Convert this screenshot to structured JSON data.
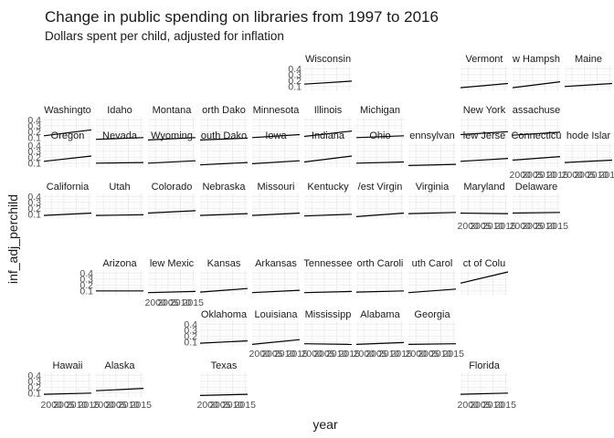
{
  "chart_data": {
    "type": "line",
    "layout": "facet-geo",
    "title": "Change in public spending on libraries from 1997 to 2016",
    "subtitle": "Dollars spent per child, adjusted for inflation",
    "xlabel": "year",
    "ylabel": "inf_adj_perchild",
    "x_ticks": [
      2000,
      2005,
      2010,
      2015
    ],
    "x_tick_labels": [
      "2000",
      "2005",
      "2010",
      "2015"
    ],
    "y_ticks": [
      0.1,
      0.2,
      0.3,
      0.4
    ],
    "y_tick_labels": [
      "0.1",
      "0.2",
      "0.3",
      "0.4"
    ],
    "xlim": [
      1997,
      2016
    ],
    "ylim": [
      0.02,
      0.45
    ],
    "grid": true,
    "panels": [
      {
        "label": "Wisconsin",
        "row": 0,
        "col": 5,
        "x": [
          1997,
          2016
        ],
        "y": [
          0.14,
          0.19
        ]
      },
      {
        "label": "Vermont",
        "row": 0,
        "col": 8,
        "x": [
          1997,
          2016
        ],
        "y": [
          0.08,
          0.15
        ]
      },
      {
        "label": "w Hampsh",
        "row": 0,
        "col": 9,
        "x": [
          1997,
          2016
        ],
        "y": [
          0.08,
          0.18
        ]
      },
      {
        "label": "Maine",
        "row": 0,
        "col": 10,
        "x": [
          1997,
          2016
        ],
        "y": [
          0.1,
          0.15
        ]
      },
      {
        "label": "Washingto",
        "row": 1,
        "col": 0,
        "x": [
          1997,
          2016
        ],
        "y": [
          0.13,
          0.23
        ]
      },
      {
        "label": "Idaho",
        "row": 1,
        "col": 1,
        "x": [
          1997,
          2016
        ],
        "y": [
          0.07,
          0.1
        ]
      },
      {
        "label": "Montana",
        "row": 1,
        "col": 2,
        "x": [
          1997,
          2016
        ],
        "y": [
          0.06,
          0.1
        ]
      },
      {
        "label": "orth Dako",
        "row": 1,
        "col": 3,
        "x": [
          1997,
          2016
        ],
        "y": [
          0.06,
          0.09
        ]
      },
      {
        "label": "Minnesota",
        "row": 1,
        "col": 4,
        "x": [
          1997,
          2016
        ],
        "y": [
          0.1,
          0.15
        ]
      },
      {
        "label": "Illinois",
        "row": 1,
        "col": 5,
        "x": [
          1997,
          2016
        ],
        "y": [
          0.12,
          0.21
        ]
      },
      {
        "label": "Michigan",
        "row": 1,
        "col": 6,
        "x": [
          1997,
          2016
        ],
        "y": [
          0.1,
          0.13
        ]
      },
      {
        "label": "New York",
        "row": 1,
        "col": 8,
        "x": [
          1997,
          2016
        ],
        "y": [
          0.15,
          0.2
        ]
      },
      {
        "label": "assachuse",
        "row": 1,
        "col": 9,
        "x": [
          1997,
          2016
        ],
        "y": [
          0.14,
          0.19
        ]
      },
      {
        "label": "Oregon",
        "row": 2,
        "col": 0,
        "x": [
          1997,
          2016
        ],
        "y": [
          0.13,
          0.22
        ]
      },
      {
        "label": "Nevada",
        "row": 2,
        "col": 1,
        "x": [
          1997,
          2016
        ],
        "y": [
          0.1,
          0.11
        ]
      },
      {
        "label": "Wyoming",
        "row": 2,
        "col": 2,
        "x": [
          1997,
          2016
        ],
        "y": [
          0.1,
          0.14
        ]
      },
      {
        "label": "outh Dako",
        "row": 2,
        "col": 3,
        "x": [
          1997,
          2016
        ],
        "y": [
          0.07,
          0.11
        ]
      },
      {
        "label": "Iowa",
        "row": 2,
        "col": 4,
        "x": [
          1997,
          2016
        ],
        "y": [
          0.09,
          0.14
        ]
      },
      {
        "label": "Indiana",
        "row": 2,
        "col": 5,
        "x": [
          1997,
          2016
        ],
        "y": [
          0.12,
          0.22
        ]
      },
      {
        "label": "Ohio",
        "row": 2,
        "col": 6,
        "x": [
          1997,
          2016
        ],
        "y": [
          0.1,
          0.12
        ]
      },
      {
        "label": "ennsylvan",
        "row": 2,
        "col": 7,
        "x": [
          1997,
          2016
        ],
        "y": [
          0.06,
          0.08
        ]
      },
      {
        "label": "lew Jerse",
        "row": 2,
        "col": 8,
        "x": [
          1997,
          2016
        ],
        "y": [
          0.13,
          0.18
        ]
      },
      {
        "label": "Connecticu",
        "row": 2,
        "col": 9,
        "x": [
          1997,
          2016
        ],
        "y": [
          0.15,
          0.21
        ]
      },
      {
        "label": "hode Islar",
        "row": 2,
        "col": 10,
        "x": [
          1997,
          2016
        ],
        "y": [
          0.11,
          0.15
        ]
      },
      {
        "label": "California",
        "row": 3,
        "col": 0,
        "x": [
          1997,
          2016
        ],
        "y": [
          0.08,
          0.12
        ]
      },
      {
        "label": "Utah",
        "row": 3,
        "col": 1,
        "x": [
          1997,
          2016
        ],
        "y": [
          0.08,
          0.09
        ]
      },
      {
        "label": "Colorado",
        "row": 3,
        "col": 2,
        "x": [
          1997,
          2016
        ],
        "y": [
          0.12,
          0.16
        ]
      },
      {
        "label": "Nebraska",
        "row": 3,
        "col": 3,
        "x": [
          1997,
          2016
        ],
        "y": [
          0.08,
          0.11
        ]
      },
      {
        "label": "Missouri",
        "row": 3,
        "col": 4,
        "x": [
          1997,
          2016
        ],
        "y": [
          0.08,
          0.12
        ]
      },
      {
        "label": "Kentucky",
        "row": 3,
        "col": 5,
        "x": [
          1997,
          2016
        ],
        "y": [
          0.07,
          0.1
        ]
      },
      {
        "label": "/est Virgin",
        "row": 3,
        "col": 6,
        "x": [
          1997,
          2016
        ],
        "y": [
          0.06,
          0.12
        ]
      },
      {
        "label": "Virginia",
        "row": 3,
        "col": 7,
        "x": [
          1997,
          2016
        ],
        "y": [
          0.11,
          0.13
        ]
      },
      {
        "label": "Maryland",
        "row": 3,
        "col": 8,
        "x": [
          1997,
          2016
        ],
        "y": [
          0.12,
          0.11
        ]
      },
      {
        "label": "Delaware",
        "row": 3,
        "col": 9,
        "x": [
          1997,
          2016
        ],
        "y": [
          0.12,
          0.13
        ]
      },
      {
        "label": "Arizona",
        "row": 4,
        "col": 1,
        "x": [
          1997,
          2016
        ],
        "y": [
          0.1,
          0.1
        ]
      },
      {
        "label": "lew Mexic",
        "row": 4,
        "col": 2,
        "x": [
          1997,
          2016
        ],
        "y": [
          0.07,
          0.09
        ]
      },
      {
        "label": "Kansas",
        "row": 4,
        "col": 3,
        "x": [
          1997,
          2016
        ],
        "y": [
          0.08,
          0.14
        ]
      },
      {
        "label": "Arkansas",
        "row": 4,
        "col": 4,
        "x": [
          1997,
          2016
        ],
        "y": [
          0.07,
          0.11
        ]
      },
      {
        "label": "Tennessee",
        "row": 4,
        "col": 5,
        "x": [
          1997,
          2016
        ],
        "y": [
          0.07,
          0.09
        ]
      },
      {
        "label": "orth Caroli",
        "row": 4,
        "col": 6,
        "x": [
          1997,
          2016
        ],
        "y": [
          0.08,
          0.1
        ]
      },
      {
        "label": "uth Carol",
        "row": 4,
        "col": 7,
        "x": [
          1997,
          2016
        ],
        "y": [
          0.07,
          0.13
        ]
      },
      {
        "label": "ct of Colu",
        "row": 4,
        "col": 8,
        "x": [
          1997,
          2016
        ],
        "y": [
          0.23,
          0.42
        ]
      },
      {
        "label": "Oklahoma",
        "row": 5,
        "col": 3,
        "x": [
          1997,
          2016
        ],
        "y": [
          0.08,
          0.12
        ]
      },
      {
        "label": "Louisiana",
        "row": 5,
        "col": 4,
        "x": [
          1997,
          2016
        ],
        "y": [
          0.06,
          0.14
        ]
      },
      {
        "label": "Mississipp",
        "row": 5,
        "col": 5,
        "x": [
          1997,
          2016
        ],
        "y": [
          0.07,
          0.06
        ]
      },
      {
        "label": "Alabama",
        "row": 5,
        "col": 6,
        "x": [
          1997,
          2016
        ],
        "y": [
          0.06,
          0.09
        ]
      },
      {
        "label": "Georgia",
        "row": 5,
        "col": 7,
        "x": [
          1997,
          2016
        ],
        "y": [
          0.06,
          0.07
        ]
      },
      {
        "label": "Hawaii",
        "row": 6,
        "col": 0,
        "x": [
          1997,
          2016
        ],
        "y": [
          0.08,
          0.1
        ]
      },
      {
        "label": "Alaska",
        "row": 6,
        "col": 1,
        "x": [
          1997,
          2016
        ],
        "y": [
          0.14,
          0.18
        ]
      },
      {
        "label": "Texas",
        "row": 6,
        "col": 3,
        "x": [
          1997,
          2016
        ],
        "y": [
          0.06,
          0.08
        ]
      },
      {
        "label": "Florida",
        "row": 6,
        "col": 8,
        "x": [
          1997,
          2016
        ],
        "y": [
          0.08,
          0.1
        ]
      }
    ]
  }
}
